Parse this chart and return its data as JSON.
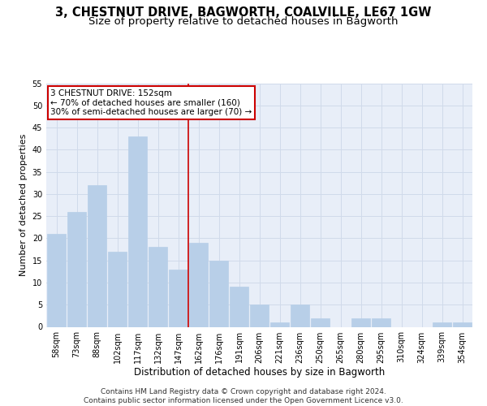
{
  "title1": "3, CHESTNUT DRIVE, BAGWORTH, COALVILLE, LE67 1GW",
  "title2": "Size of property relative to detached houses in Bagworth",
  "xlabel": "Distribution of detached houses by size in Bagworth",
  "ylabel": "Number of detached properties",
  "categories": [
    "58sqm",
    "73sqm",
    "88sqm",
    "102sqm",
    "117sqm",
    "132sqm",
    "147sqm",
    "162sqm",
    "176sqm",
    "191sqm",
    "206sqm",
    "221sqm",
    "236sqm",
    "250sqm",
    "265sqm",
    "280sqm",
    "295sqm",
    "310sqm",
    "324sqm",
    "339sqm",
    "354sqm"
  ],
  "values": [
    21,
    26,
    32,
    17,
    43,
    18,
    13,
    19,
    15,
    9,
    5,
    1,
    5,
    2,
    0,
    2,
    2,
    0,
    0,
    1,
    1
  ],
  "bar_color": "#b8cfe8",
  "bar_edgecolor": "#b8cfe8",
  "vline_color": "#cc0000",
  "annotation_line1": "3 CHESTNUT DRIVE: 152sqm",
  "annotation_line2": "← 70% of detached houses are smaller (160)",
  "annotation_line3": "30% of semi-detached houses are larger (70) →",
  "annotation_box_edgecolor": "#cc0000",
  "annotation_box_facecolor": "#ffffff",
  "ylim": [
    0,
    55
  ],
  "yticks": [
    0,
    5,
    10,
    15,
    20,
    25,
    30,
    35,
    40,
    45,
    50,
    55
  ],
  "grid_color": "#d0daea",
  "bg_color": "#e8eef8",
  "footer_text": "Contains HM Land Registry data © Crown copyright and database right 2024.\nContains public sector information licensed under the Open Government Licence v3.0.",
  "title1_fontsize": 10.5,
  "title2_fontsize": 9.5,
  "xlabel_fontsize": 8.5,
  "ylabel_fontsize": 8,
  "tick_fontsize": 7,
  "footer_fontsize": 6.5,
  "annotation_fontsize": 7.5
}
